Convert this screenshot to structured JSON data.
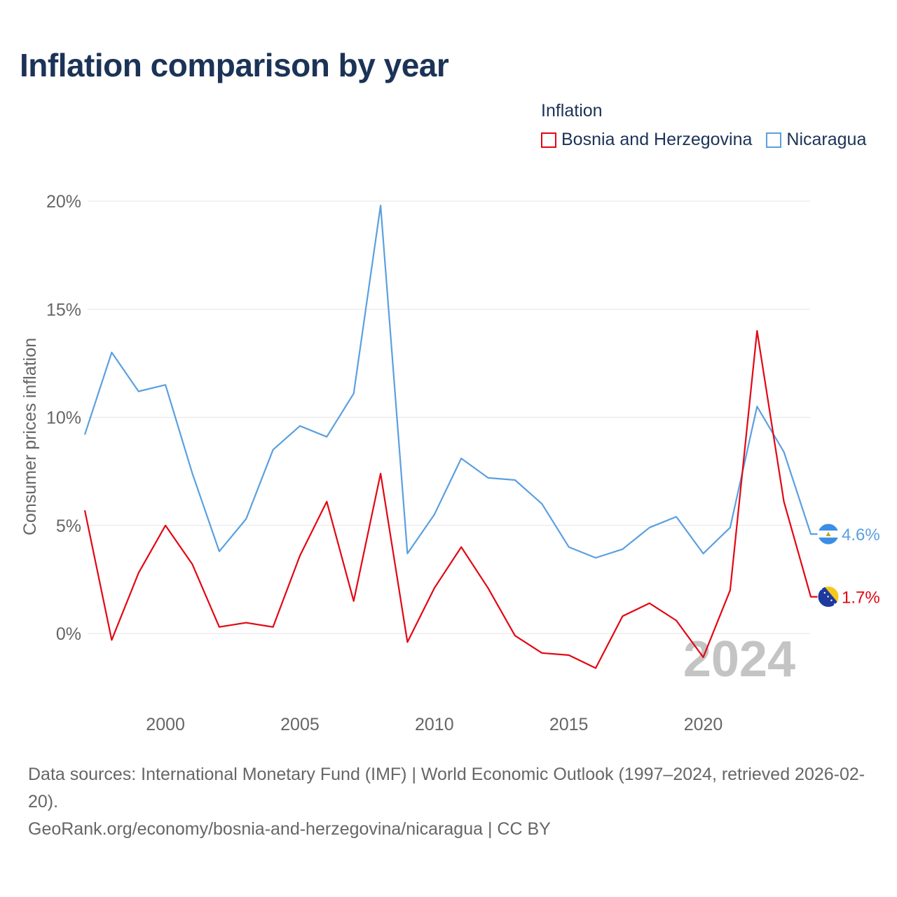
{
  "title": "Inflation comparison by year",
  "legend": {
    "title": "Inflation",
    "items": [
      {
        "label": "Bosnia and Herzegovina",
        "color": "#e30613"
      },
      {
        "label": "Nicaragua",
        "color": "#5aa0e0"
      }
    ]
  },
  "chart_data": {
    "type": "line",
    "title": "Inflation comparison by year",
    "xlabel": "",
    "ylabel": "Consumer prices inflation",
    "xlim": [
      1997,
      2024
    ],
    "ylim": [
      -3,
      20
    ],
    "x_ticks": [
      2000,
      2005,
      2010,
      2015,
      2020
    ],
    "y_ticks": [
      0,
      5,
      10,
      15,
      20
    ],
    "y_tick_labels": [
      "0%",
      "5%",
      "10%",
      "15%",
      "20%"
    ],
    "grid": true,
    "legend_position": "top-right",
    "x": [
      1997,
      1998,
      1999,
      2000,
      2001,
      2002,
      2003,
      2004,
      2005,
      2006,
      2007,
      2008,
      2009,
      2010,
      2011,
      2012,
      2013,
      2014,
      2015,
      2016,
      2017,
      2018,
      2019,
      2020,
      2021,
      2022,
      2023,
      2024
    ],
    "series": [
      {
        "name": "Nicaragua",
        "color": "#5aa0e0",
        "values": [
          9.2,
          13.0,
          11.2,
          11.5,
          7.4,
          3.8,
          5.3,
          8.5,
          9.6,
          9.1,
          11.1,
          19.8,
          3.7,
          5.5,
          8.1,
          7.2,
          7.1,
          6.0,
          4.0,
          3.5,
          3.9,
          4.9,
          5.4,
          3.7,
          4.9,
          10.5,
          8.4,
          4.6
        ],
        "end_label": "4.6%"
      },
      {
        "name": "Bosnia and Herzegovina",
        "color": "#e30613",
        "values": [
          5.7,
          -0.3,
          2.8,
          5.0,
          3.2,
          0.3,
          0.5,
          0.3,
          3.6,
          6.1,
          1.5,
          7.4,
          -0.4,
          2.1,
          4.0,
          2.1,
          -0.1,
          -0.9,
          -1.0,
          -1.6,
          0.8,
          1.4,
          0.6,
          -1.1,
          2.0,
          14.0,
          6.1,
          1.7
        ],
        "end_label": "1.7%"
      }
    ],
    "annotation": "2024"
  },
  "footer": {
    "sources": "Data sources: International Monetary Fund (IMF) | World Economic Outlook (1997–2024, retrieved 2026-02-20).",
    "link": "GeoRank.org/economy/bosnia-and-herzegovina/nicaragua | CC BY"
  }
}
